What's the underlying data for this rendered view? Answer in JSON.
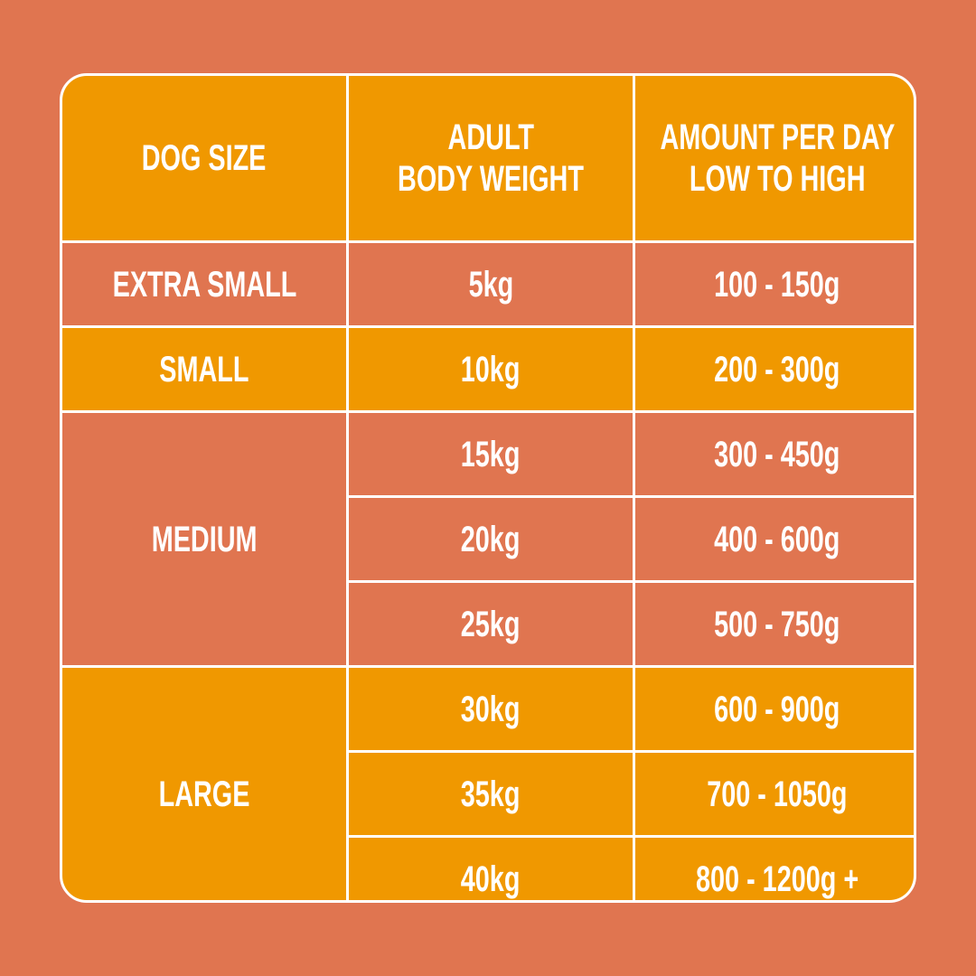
{
  "colors": {
    "background": "#E07550",
    "orange": "#F09800",
    "coral": "#E07550",
    "border": "#FFFFFF",
    "text": "#FFFFFF"
  },
  "header": {
    "col1": "DOG SIZE",
    "col2_line1": "ADULT",
    "col2_line2": "BODY WEIGHT",
    "col3_line1": "AMOUNT PER DAY",
    "col3_line2": "LOW TO HIGH"
  },
  "sizes": {
    "extra_small": "EXTRA SMALL",
    "small": "SMALL",
    "medium": "MEDIUM",
    "large": "LARGE"
  },
  "rows": [
    {
      "weight": "5kg",
      "amount": "100 - 150g"
    },
    {
      "weight": "10kg",
      "amount": "200 - 300g"
    },
    {
      "weight": "15kg",
      "amount": "300 - 450g"
    },
    {
      "weight": "20kg",
      "amount": "400 - 600g"
    },
    {
      "weight": "25kg",
      "amount": "500 - 750g"
    },
    {
      "weight": "30kg",
      "amount": "600 - 900g"
    },
    {
      "weight": "35kg",
      "amount": "700 - 1050g"
    },
    {
      "weight": "40kg",
      "amount": "800 - 1200g +"
    }
  ]
}
